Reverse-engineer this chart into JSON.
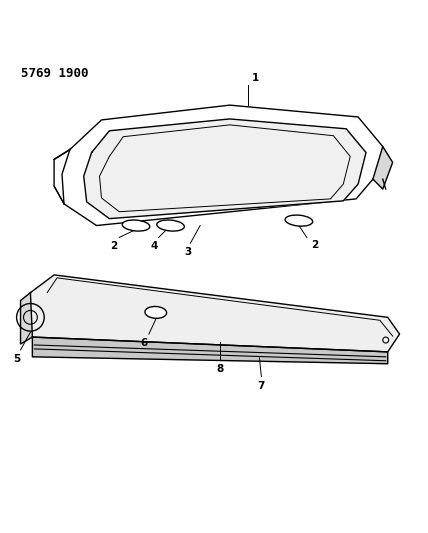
{
  "title": "5769 1900",
  "bg_color": "#ffffff",
  "line_color": "#000000",
  "label_fontsize": 7.5
}
